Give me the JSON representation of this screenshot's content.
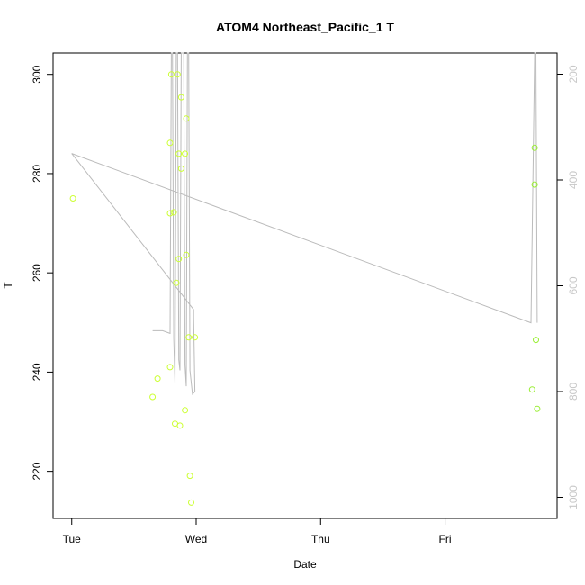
{
  "chart_data": {
    "type": "scatter",
    "title": "ATOM4 Northeast_Pacific_1 T",
    "xlabel": "Date",
    "ylabel": "T",
    "x_tick_labels": [
      "Tue",
      "Wed",
      "Thu",
      "Fri"
    ],
    "x_ticks_days": [
      0,
      1,
      2,
      3
    ],
    "xlim_days": [
      -0.15,
      3.9
    ],
    "ylim": [
      210.5,
      304.3
    ],
    "y_ticks": [
      220,
      240,
      260,
      280,
      300
    ],
    "y2_ticks": [
      200,
      400,
      600,
      800,
      1000
    ],
    "y2lim": [
      1040,
      160
    ],
    "grid": false,
    "series": [
      {
        "point_color": "#ccff33",
        "points": [
          {
            "x": 0.01,
            "y": 275
          },
          {
            "x": 0.65,
            "y": 235
          },
          {
            "x": 0.69,
            "y": 238.7
          },
          {
            "x": 0.79,
            "y": 241
          },
          {
            "x": 0.79,
            "y": 286.2
          },
          {
            "x": 0.79,
            "y": 272
          },
          {
            "x": 0.8,
            "y": 300
          },
          {
            "x": 0.82,
            "y": 272.2
          },
          {
            "x": 0.83,
            "y": 229.6
          },
          {
            "x": 0.84,
            "y": 258
          },
          {
            "x": 0.85,
            "y": 300
          },
          {
            "x": 0.86,
            "y": 262.8
          },
          {
            "x": 0.86,
            "y": 284
          },
          {
            "x": 0.87,
            "y": 229.2
          },
          {
            "x": 0.88,
            "y": 281
          },
          {
            "x": 0.88,
            "y": 295.4
          },
          {
            "x": 0.91,
            "y": 232.3
          },
          {
            "x": 0.91,
            "y": 284
          },
          {
            "x": 0.92,
            "y": 263.6
          },
          {
            "x": 0.92,
            "y": 291.1
          },
          {
            "x": 0.94,
            "y": 247
          },
          {
            "x": 0.95,
            "y": 219.1
          },
          {
            "x": 0.96,
            "y": 213.7
          },
          {
            "x": 0.99,
            "y": 247
          }
        ]
      },
      {
        "point_color": "#99ee33",
        "points": [
          {
            "x": 3.7,
            "y": 236.5
          },
          {
            "x": 3.72,
            "y": 285.2
          },
          {
            "x": 3.72,
            "y": 277.8
          },
          {
            "x": 3.73,
            "y": 246.5
          },
          {
            "x": 3.74,
            "y": 232.6
          }
        ]
      }
    ],
    "pressure_line": {
      "color": "#bbbbbb",
      "points": [
        {
          "x": 0.0,
          "y2": 350
        },
        {
          "x": 0.98,
          "y2": 645
        },
        {
          "x": 0.98,
          "y2": 660
        },
        {
          "x": 0.99,
          "y2": 800
        },
        {
          "x": 0.97,
          "y2": 805
        },
        {
          "x": 0.95,
          "y2": 760
        },
        {
          "x": 0.94,
          "y2": 160
        },
        {
          "x": 0.93,
          "y2": 160
        },
        {
          "x": 0.92,
          "y2": 790
        },
        {
          "x": 0.91,
          "y2": 750
        },
        {
          "x": 0.9,
          "y2": 160
        },
        {
          "x": 0.88,
          "y2": 160
        },
        {
          "x": 0.87,
          "y2": 760
        },
        {
          "x": 0.86,
          "y2": 740
        },
        {
          "x": 0.85,
          "y2": 160
        },
        {
          "x": 0.84,
          "y2": 160
        },
        {
          "x": 0.83,
          "y2": 785
        },
        {
          "x": 0.82,
          "y2": 700
        },
        {
          "x": 0.81,
          "y2": 160
        },
        {
          "x": 0.8,
          "y2": 160
        },
        {
          "x": 0.79,
          "y2": 690
        },
        {
          "x": 0.73,
          "y2": 685
        },
        {
          "x": 0.65,
          "y2": 685
        }
      ],
      "points2": [
        {
          "x": 0.0,
          "y2": 350
        },
        {
          "x": 3.69,
          "y2": 670
        },
        {
          "x": 3.72,
          "y2": 160
        },
        {
          "x": 3.73,
          "y2": 160
        },
        {
          "x": 3.74,
          "y2": 670
        }
      ]
    }
  }
}
